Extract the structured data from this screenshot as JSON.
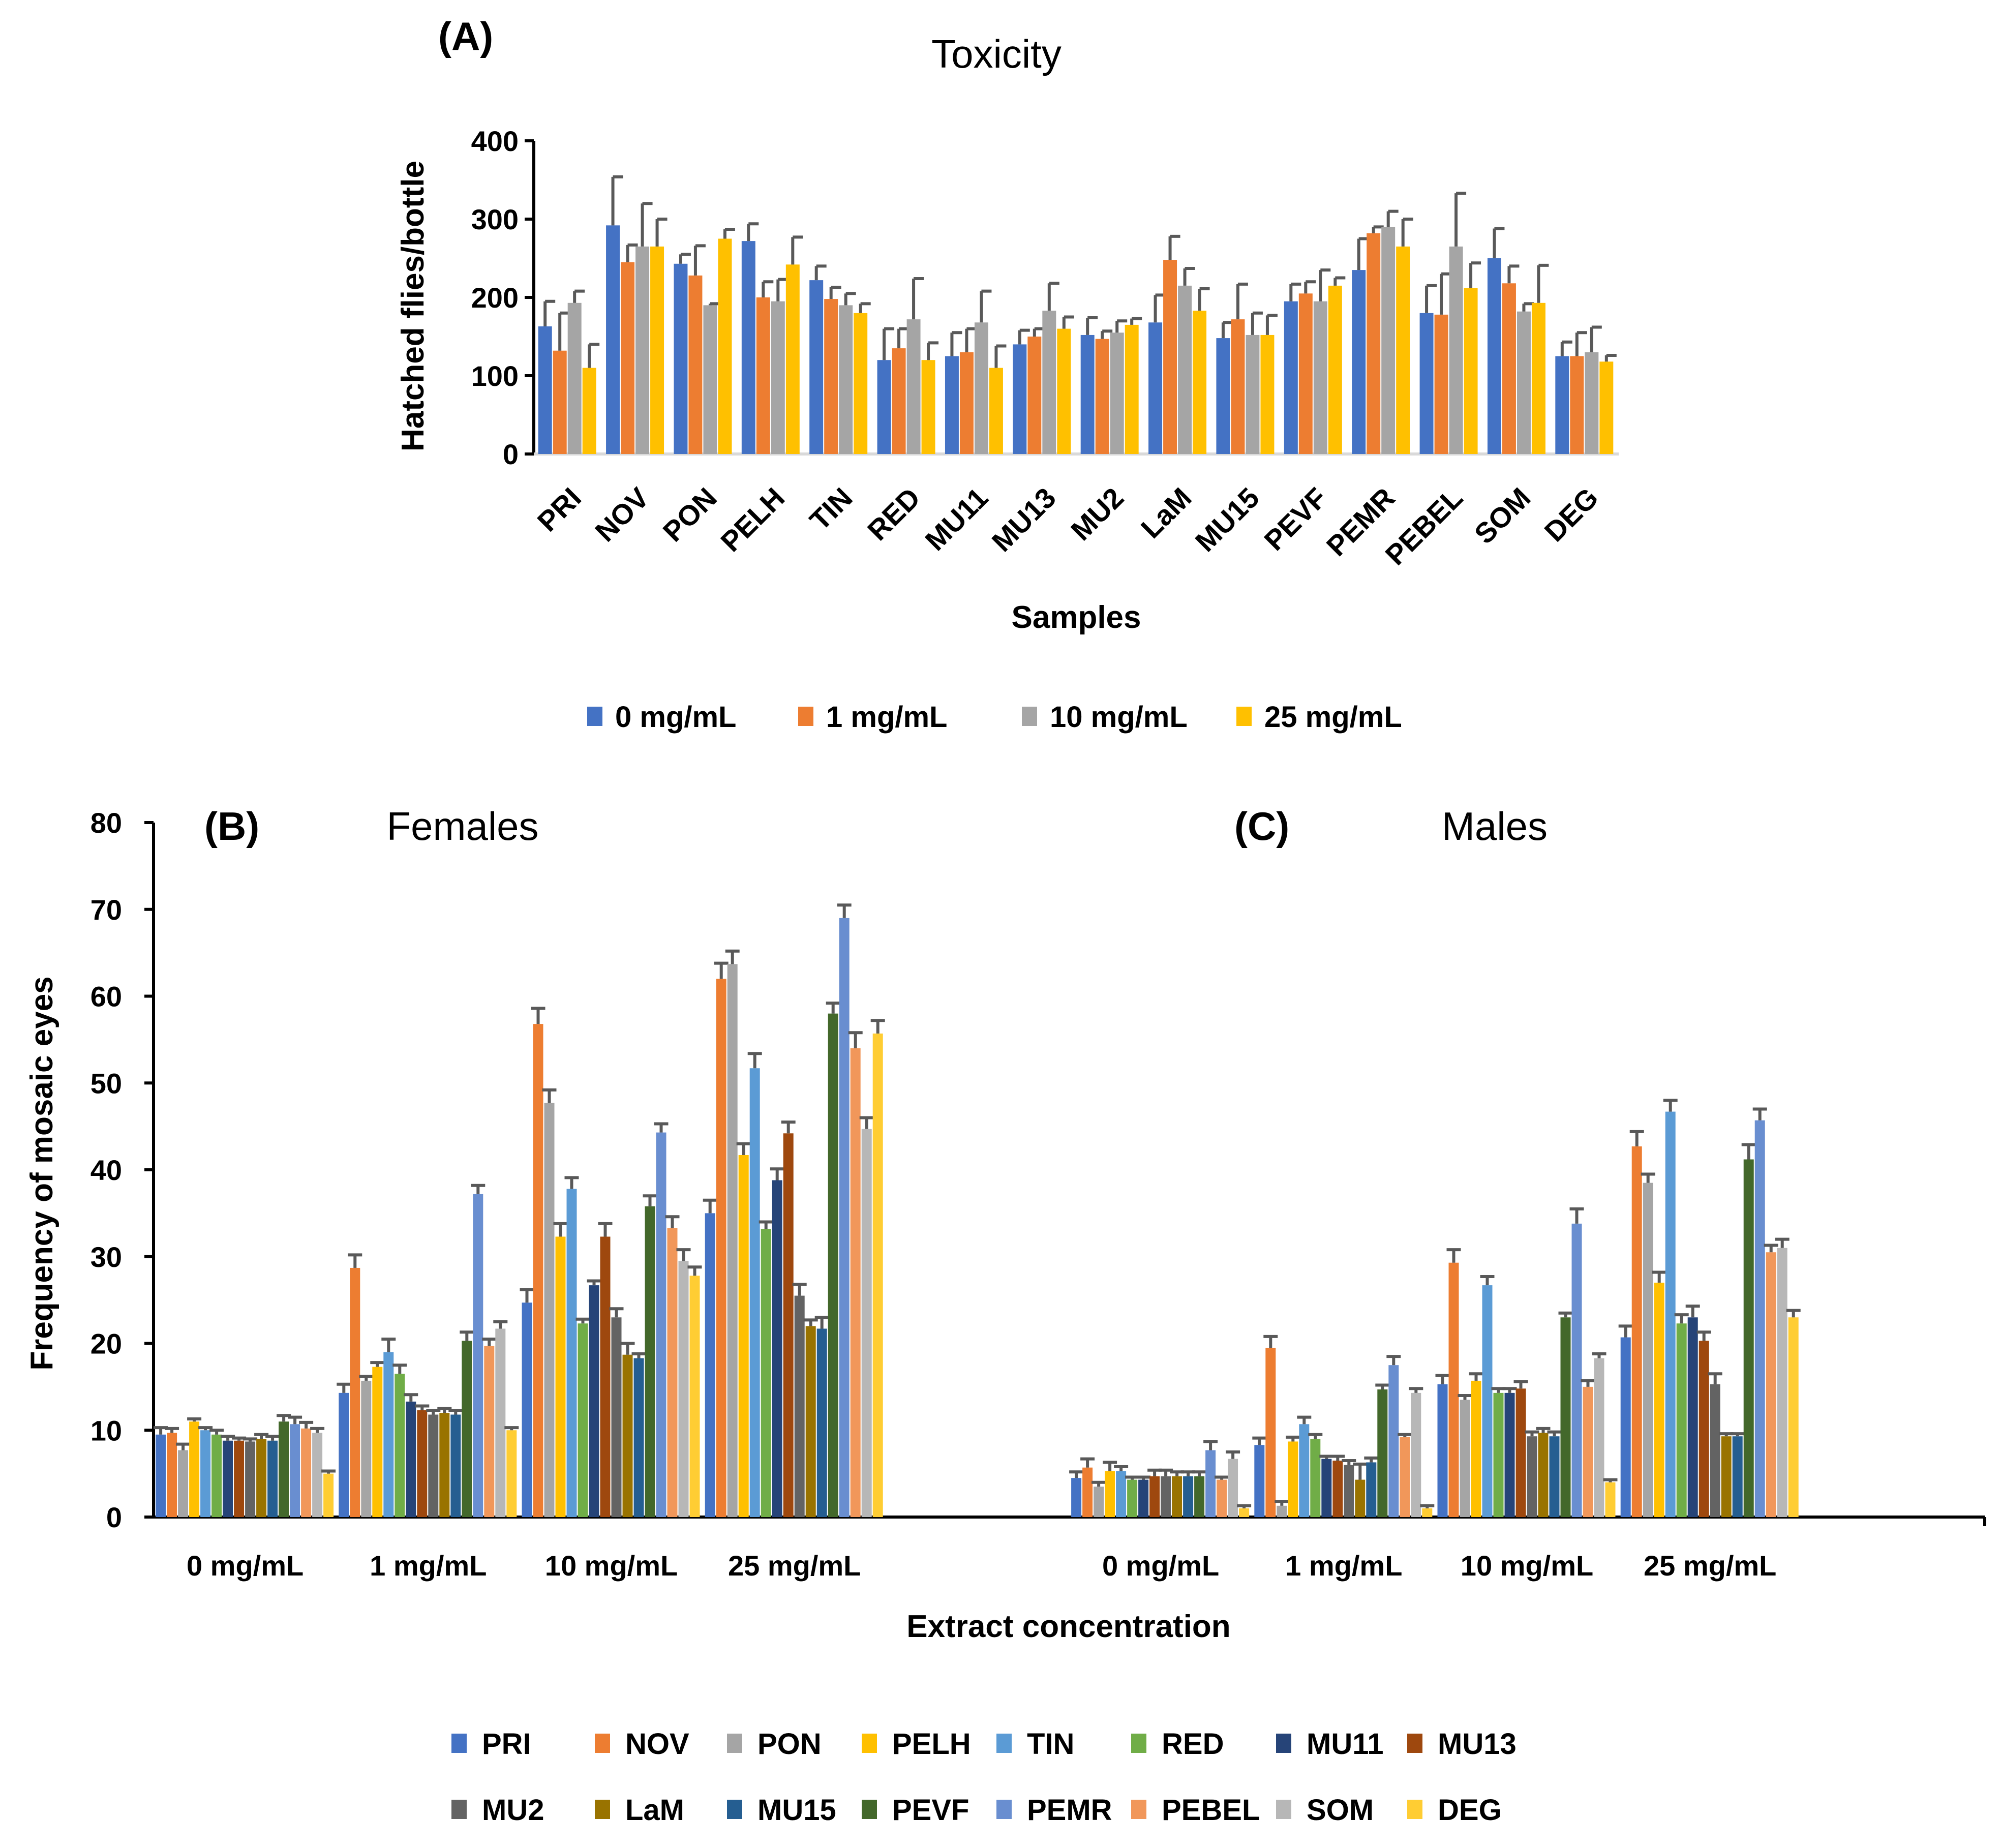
{
  "colors": {
    "PRI": "#4472C4",
    "NOV": "#ED7D31",
    "PON": "#A5A5A5",
    "PELH": "#FFC000",
    "TIN": "#5B9BD5",
    "RED": "#70AD47",
    "MU11": "#264478",
    "MU13": "#9E480E",
    "MU2": "#636363",
    "LaM": "#997300",
    "MU15": "#255E91",
    "PEVF": "#43682B",
    "PEMR": "#698ED0",
    "PEBEL": "#F1975A",
    "SOM": "#B7B7B7",
    "DEG": "#FFCD33"
  },
  "chart_data": [
    {
      "id": "A",
      "type": "bar",
      "panel_label": "(A)",
      "title": "Toxicity",
      "xlabel": "Samples",
      "ylabel": "Hatched flies/bottle",
      "ylim": [
        0,
        400
      ],
      "yticks": [
        "0",
        "100",
        "200",
        "300",
        "400"
      ],
      "categories": [
        "PRI",
        "NOV",
        "PON",
        "PELH",
        "TIN",
        "RED",
        "MU11",
        "MU13",
        "MU2",
        "LaM",
        "MU15",
        "PEVF",
        "PEMR",
        "PEBEL",
        "SOM",
        "DEG"
      ],
      "series": [
        {
          "name": "0 mg/mL",
          "color": "#4472C4",
          "values": [
            163,
            292,
            243,
            272,
            222,
            120,
            125,
            140,
            152,
            168,
            148,
            195,
            235,
            180,
            250,
            125
          ],
          "errors": [
            32,
            62,
            12,
            22,
            18,
            40,
            30,
            18,
            22,
            35,
            20,
            22,
            40,
            35,
            38,
            18
          ]
        },
        {
          "name": "1 mg/mL",
          "color": "#ED7D31",
          "values": [
            132,
            245,
            228,
            200,
            198,
            135,
            130,
            150,
            147,
            248,
            172,
            205,
            282,
            178,
            218,
            125
          ],
          "errors": [
            48,
            22,
            38,
            20,
            15,
            25,
            30,
            10,
            10,
            30,
            45,
            15,
            8,
            52,
            22,
            30
          ]
        },
        {
          "name": "10 mg/mL",
          "color": "#A5A5A5",
          "values": [
            193,
            265,
            190,
            195,
            190,
            172,
            168,
            183,
            155,
            215,
            152,
            195,
            290,
            265,
            182,
            130
          ],
          "errors": [
            15,
            55,
            2,
            28,
            15,
            52,
            40,
            35,
            15,
            22,
            28,
            40,
            20,
            68,
            10,
            32
          ]
        },
        {
          "name": "25 mg/mL",
          "color": "#FFC000",
          "values": [
            110,
            265,
            275,
            242,
            180,
            120,
            110,
            160,
            165,
            183,
            152,
            215,
            265,
            212,
            193,
            118
          ],
          "errors": [
            30,
            35,
            12,
            35,
            12,
            22,
            28,
            15,
            8,
            28,
            25,
            10,
            35,
            32,
            48,
            8
          ]
        }
      ]
    },
    {
      "id": "B",
      "type": "bar",
      "panel_label": "(B)",
      "title": "Females",
      "categories": [
        "0 mg/mL",
        "1 mg/mL",
        "10 mg/mL",
        "25 mg/mL"
      ],
      "series": [
        {
          "name": "PRI",
          "values": [
            9.5,
            14.3,
            24.7,
            35.0
          ],
          "errors": [
            0.8,
            1.0,
            1.5,
            1.5
          ]
        },
        {
          "name": "NOV",
          "values": [
            9.7,
            28.7,
            56.8,
            62.0
          ],
          "errors": [
            0.5,
            1.5,
            1.8,
            1.8
          ]
        },
        {
          "name": "PON",
          "values": [
            7.7,
            15.7,
            47.7,
            63.7
          ],
          "errors": [
            0.7,
            0.5,
            1.5,
            1.5
          ]
        },
        {
          "name": "PELH",
          "values": [
            11.0,
            17.3,
            32.3,
            41.7
          ],
          "errors": [
            0.3,
            0.5,
            1.5,
            1.3
          ]
        },
        {
          "name": "TIN",
          "values": [
            10.0,
            19.0,
            37.8,
            51.7
          ],
          "errors": [
            0.3,
            1.5,
            1.3,
            1.7
          ]
        },
        {
          "name": "RED",
          "values": [
            9.5,
            16.5,
            22.3,
            33.2
          ],
          "errors": [
            0.5,
            1.0,
            0.5,
            0.8
          ]
        },
        {
          "name": "MU11",
          "values": [
            8.8,
            13.3,
            26.7,
            38.8
          ],
          "errors": [
            0.5,
            0.8,
            0.5,
            1.3
          ]
        },
        {
          "name": "MU13",
          "values": [
            8.8,
            12.3,
            32.3,
            44.2
          ],
          "errors": [
            0.3,
            0.5,
            1.5,
            1.3
          ]
        },
        {
          "name": "MU2",
          "values": [
            8.7,
            11.8,
            23.0,
            25.5
          ],
          "errors": [
            0.3,
            0.5,
            1.0,
            1.3
          ]
        },
        {
          "name": "LaM",
          "values": [
            9.0,
            12.0,
            18.7,
            22.0
          ],
          "errors": [
            0.5,
            0.5,
            1.3,
            0.7
          ]
        },
        {
          "name": "MU15",
          "values": [
            8.8,
            11.8,
            18.3,
            21.7
          ],
          "errors": [
            0.5,
            0.5,
            0.5,
            1.3
          ]
        },
        {
          "name": "PEVF",
          "values": [
            11.0,
            20.3,
            35.8,
            58.0
          ],
          "errors": [
            0.7,
            1.0,
            1.2,
            1.2
          ]
        },
        {
          "name": "PEMR",
          "values": [
            10.7,
            37.2,
            44.3,
            69.0
          ],
          "errors": [
            0.8,
            1.0,
            1.0,
            1.5
          ]
        },
        {
          "name": "PEBEL",
          "values": [
            10.2,
            19.7,
            33.3,
            54.0
          ],
          "errors": [
            0.7,
            0.8,
            1.3,
            1.8
          ]
        },
        {
          "name": "SOM",
          "values": [
            9.7,
            21.7,
            29.5,
            44.7
          ],
          "errors": [
            0.5,
            0.8,
            1.3,
            1.3
          ]
        },
        {
          "name": "DEG",
          "values": [
            5.0,
            10.0,
            27.8,
            55.7
          ],
          "errors": [
            0.3,
            0.3,
            1.0,
            1.5
          ]
        }
      ]
    },
    {
      "id": "C",
      "type": "bar",
      "panel_label": "(C)",
      "title": "Males",
      "categories": [
        "0 mg/mL",
        "1 mg/mL",
        "10 mg/mL",
        "25 mg/mL"
      ],
      "series": [
        {
          "name": "PRI",
          "values": [
            4.5,
            8.3,
            15.3,
            20.7
          ],
          "errors": [
            0.7,
            0.8,
            1.0,
            1.3
          ]
        },
        {
          "name": "NOV",
          "values": [
            5.7,
            19.5,
            29.3,
            42.7
          ],
          "errors": [
            1.0,
            1.3,
            1.5,
            1.7
          ]
        },
        {
          "name": "PON",
          "values": [
            3.5,
            1.3,
            13.5,
            38.5
          ],
          "errors": [
            0.5,
            0.5,
            0.5,
            1.0
          ]
        },
        {
          "name": "PELH",
          "values": [
            5.3,
            8.7,
            15.7,
            27.0
          ],
          "errors": [
            1.0,
            0.5,
            0.8,
            1.2
          ]
        },
        {
          "name": "TIN",
          "values": [
            5.3,
            10.7,
            26.7,
            46.7
          ],
          "errors": [
            0.5,
            0.8,
            1.0,
            1.3
          ]
        },
        {
          "name": "RED",
          "values": [
            4.3,
            9.0,
            14.3,
            22.3
          ],
          "errors": [
            0.3,
            0.5,
            0.5,
            1.0
          ]
        },
        {
          "name": "MU11",
          "values": [
            4.3,
            6.7,
            14.3,
            23.0
          ],
          "errors": [
            0.3,
            0.3,
            0.5,
            1.3
          ]
        },
        {
          "name": "MU13",
          "values": [
            4.7,
            6.5,
            14.8,
            20.3
          ],
          "errors": [
            0.7,
            0.5,
            0.8,
            1.0
          ]
        },
        {
          "name": "MU2",
          "values": [
            4.7,
            6.0,
            9.3,
            15.3
          ],
          "errors": [
            0.7,
            0.5,
            0.5,
            1.2
          ]
        },
        {
          "name": "LaM",
          "values": [
            4.7,
            4.3,
            9.7,
            9.3
          ],
          "errors": [
            0.5,
            1.8,
            0.5,
            0.3
          ]
        },
        {
          "name": "MU15",
          "values": [
            4.7,
            6.3,
            9.3,
            9.3
          ],
          "errors": [
            0.5,
            0.5,
            0.5,
            0.3
          ]
        },
        {
          "name": "PEVF",
          "values": [
            4.7,
            14.7,
            23.0,
            41.2
          ],
          "errors": [
            0.5,
            0.5,
            0.5,
            1.7
          ]
        },
        {
          "name": "PEMR",
          "values": [
            7.7,
            17.5,
            33.8,
            45.7
          ],
          "errors": [
            1.0,
            1.0,
            1.7,
            1.3
          ]
        },
        {
          "name": "PEBEL",
          "values": [
            4.3,
            9.2,
            15.0,
            30.5
          ],
          "errors": [
            0.3,
            0.3,
            0.7,
            0.8
          ]
        },
        {
          "name": "SOM",
          "values": [
            6.7,
            14.3,
            18.3,
            31.0
          ],
          "errors": [
            0.8,
            0.5,
            0.5,
            1.0
          ]
        },
        {
          "name": "DEG",
          "values": [
            1.0,
            1.0,
            4.0,
            23.0
          ],
          "errors": [
            0.3,
            0.3,
            0.3,
            0.8
          ]
        }
      ]
    }
  ],
  "shared_bc": {
    "ylabel": "Frequency of mosaic eyes",
    "xlabel": "Extract concentration",
    "ylim": [
      0,
      80
    ],
    "yticks": [
      "0",
      "10",
      "20",
      "30",
      "40",
      "50",
      "60",
      "70",
      "80"
    ],
    "legend": [
      "PRI",
      "NOV",
      "PON",
      "PELH",
      "TIN",
      "RED",
      "MU11",
      "MU13",
      "MU2",
      "LaM",
      "MU15",
      "PEVF",
      "PEMR",
      "PEBEL",
      "SOM",
      "DEG"
    ]
  }
}
